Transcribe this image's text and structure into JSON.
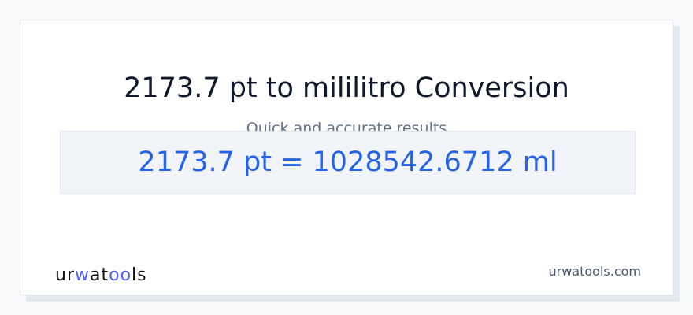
{
  "title": "2173.7 pt to mililitro Conversion",
  "subtitle": "Quick and accurate results",
  "result": "2173.7 pt = 1028542.6712 ml",
  "logo": {
    "text": "urwatools",
    "parts": [
      "ur",
      "w",
      "at",
      "oo",
      "ls"
    ],
    "accent": "#4f63e8"
  },
  "site": "urwatools.com"
}
